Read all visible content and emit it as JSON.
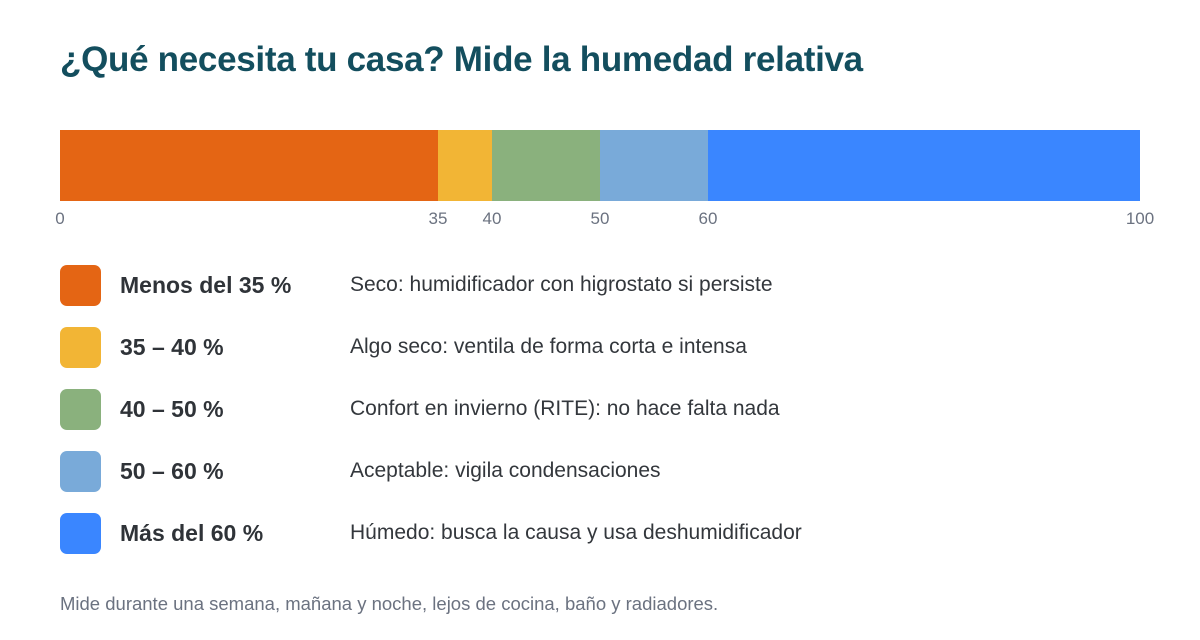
{
  "chart_data": {
    "type": "bar",
    "orientation": "horizontal-stacked",
    "title": "¿Qué necesita tu casa? Mide la humedad relativa",
    "xlim": [
      0,
      100
    ],
    "ticks": [
      "0",
      "35",
      "40",
      "50",
      "60",
      "100"
    ],
    "tick_values": [
      0,
      35,
      40,
      50,
      60,
      100
    ],
    "segments": [
      {
        "from": 0,
        "to": 35,
        "color": "#e46514",
        "range_label": "Menos del 35 %",
        "description": "Seco: humidificador con higrostato si persiste"
      },
      {
        "from": 35,
        "to": 40,
        "color": "#f2b535",
        "range_label": "35 – 40 %",
        "description": "Algo seco: ventila de forma corta e intensa"
      },
      {
        "from": 40,
        "to": 50,
        "color": "#8ab17d",
        "range_label": "40 – 50 %",
        "description": "Confort en invierno (RITE): no hace falta nada"
      },
      {
        "from": 50,
        "to": 60,
        "color": "#79aad9",
        "range_label": "50 – 60 %",
        "description": "Aceptable: vigila condensaciones"
      },
      {
        "from": 60,
        "to": 100,
        "color": "#3a86ff",
        "range_label": "Más del 60 %",
        "description": "Húmedo: busca la causa y usa deshumidificador"
      }
    ],
    "footnote": "Mide durante una semana, mañana y noche, lejos de cocina, baño y radiadores."
  }
}
